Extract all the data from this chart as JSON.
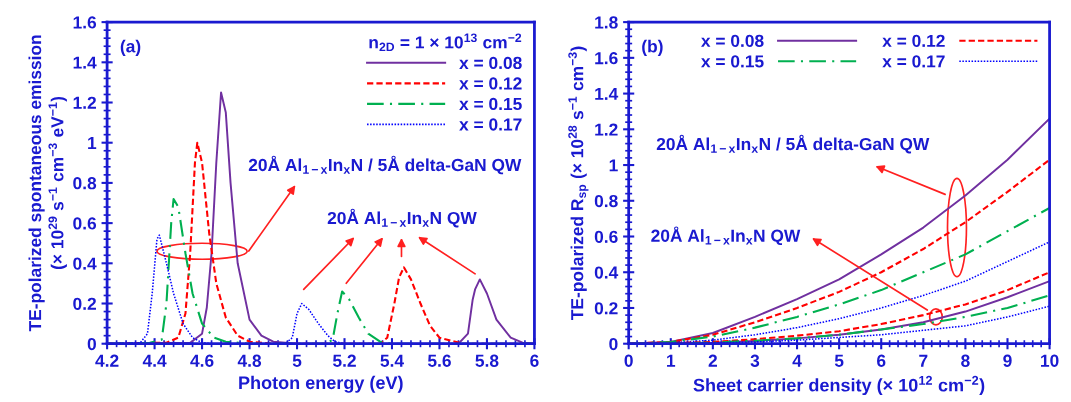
{
  "chart_data": [
    {
      "type": "line",
      "xlabel": "Photon energy (eV)",
      "ylabel": "TE-polarized spontaneous emission\n(× 10$^{29}$ s$^{−1}$ cm$^{−3}$ eV$^{−1}$)",
      "xlim": [
        4.2,
        6
      ],
      "ylim": [
        0,
        1.6
      ],
      "xticks": [
        4.2,
        4.4,
        4.6,
        4.8,
        5,
        5.2,
        5.4,
        5.6,
        5.8,
        6
      ],
      "yticks": [
        0,
        0.2,
        0.4,
        0.6,
        0.8,
        1,
        1.2,
        1.4,
        1.6
      ],
      "legend": "top right",
      "legend_title": "n$_{2D}$ = 1 × 10$^{13}$ cm$^{−2}$",
      "annotations": [
        "(a)",
        "20Å Al$_{1−x}$In$_{x}$N / 5Å delta-GaN QW",
        "20Å Al$_{1−x}$In$_{x}$N QW"
      ],
      "series": [
        {
          "name": "x = 0.08",
          "color": "#7030a0",
          "line_style": "solid",
          "x": [
            4.2,
            4.55,
            4.6,
            4.62,
            4.64,
            4.66,
            4.68,
            4.7,
            4.72,
            4.75,
            4.8,
            4.85,
            4.9,
            5.0,
            5.68,
            5.72,
            5.74,
            5.75,
            5.77,
            5.8,
            5.84,
            5.9,
            5.95,
            6.0
          ],
          "values": [
            0,
            0.005,
            0.05,
            0.18,
            0.45,
            0.9,
            1.25,
            1.15,
            0.8,
            0.4,
            0.12,
            0.04,
            0.01,
            0,
            0,
            0.05,
            0.22,
            0.27,
            0.32,
            0.25,
            0.12,
            0.03,
            0.005,
            0
          ]
        },
        {
          "name": "x = 0.12",
          "color": "#ff0000",
          "line_style": "dashed",
          "x": [
            4.2,
            4.45,
            4.5,
            4.53,
            4.55,
            4.57,
            4.58,
            4.6,
            4.63,
            4.66,
            4.7,
            4.75,
            4.8,
            4.9,
            5.35,
            5.38,
            5.41,
            5.43,
            5.45,
            5.48,
            5.52,
            5.56,
            5.6,
            5.7,
            6.0
          ],
          "values": [
            0,
            0.005,
            0.03,
            0.15,
            0.45,
            0.9,
            1.0,
            0.9,
            0.55,
            0.3,
            0.13,
            0.04,
            0.01,
            0,
            0,
            0.03,
            0.2,
            0.33,
            0.38,
            0.32,
            0.2,
            0.09,
            0.03,
            0,
            0
          ]
        },
        {
          "name": "x = 0.15",
          "color": "#00b050",
          "line_style": "dashdot",
          "x": [
            4.2,
            4.38,
            4.43,
            4.45,
            4.47,
            4.48,
            4.5,
            4.53,
            4.56,
            4.6,
            4.65,
            4.7,
            4.8,
            5.12,
            5.15,
            5.17,
            5.19,
            5.22,
            5.26,
            5.3,
            5.35,
            5.4,
            6.0
          ],
          "values": [
            0,
            0.005,
            0.02,
            0.2,
            0.6,
            0.72,
            0.68,
            0.45,
            0.25,
            0.1,
            0.03,
            0.01,
            0,
            0,
            0.02,
            0.15,
            0.26,
            0.22,
            0.13,
            0.05,
            0.01,
            0,
            0
          ]
        },
        {
          "name": "x = 0.17",
          "color": "#0000ff",
          "line_style": "dotted",
          "x": [
            4.2,
            4.34,
            4.37,
            4.39,
            4.41,
            4.42,
            4.45,
            4.48,
            4.52,
            4.56,
            4.6,
            4.65,
            4.95,
            4.98,
            5.0,
            5.02,
            5.05,
            5.09,
            5.13,
            5.16,
            5.2,
            6.0
          ],
          "values": [
            0,
            0.005,
            0.05,
            0.25,
            0.52,
            0.54,
            0.4,
            0.25,
            0.1,
            0.03,
            0.005,
            0,
            0,
            0.03,
            0.15,
            0.2,
            0.17,
            0.1,
            0.04,
            0.01,
            0,
            0
          ]
        }
      ]
    },
    {
      "type": "line",
      "xlabel": "Sheet carrier density (× 10$^{12}$ cm$^{−2}$)",
      "ylabel": "TE-polarized R$_{sp}$ (× 10$^{28}$ s$^{−1}$ cm$^{−3}$)",
      "xlim": [
        0,
        10
      ],
      "ylim": [
        0,
        1.8
      ],
      "xticks": [
        0,
        1,
        2,
        3,
        4,
        5,
        6,
        7,
        8,
        9,
        10
      ],
      "yticks": [
        0,
        0.2,
        0.4,
        0.6,
        0.8,
        1,
        1.2,
        1.4,
        1.6,
        1.8
      ],
      "legend": "top right",
      "annotations": [
        "(b)",
        "20Å Al$_{1−x}$In$_{x}$N / 5Å delta-GaN QW",
        "20Å Al$_{1−x}$In$_{x}$N QW"
      ],
      "series": [
        {
          "name": "x = 0.08",
          "color": "#7030a0",
          "line_style": "solid",
          "x": [
            0,
            1,
            2,
            3,
            4,
            5,
            6,
            7,
            8,
            9,
            10
          ],
          "values": [
            0,
            0.01,
            0.06,
            0.15,
            0.25,
            0.36,
            0.5,
            0.65,
            0.83,
            1.03,
            1.26
          ]
        },
        {
          "name": "x = 0.12",
          "color": "#ff0000",
          "line_style": "dashed",
          "x": [
            0,
            1,
            2,
            3,
            4,
            5,
            6,
            7,
            8,
            9,
            10
          ],
          "values": [
            0,
            0.01,
            0.05,
            0.12,
            0.2,
            0.29,
            0.4,
            0.53,
            0.68,
            0.85,
            1.03
          ]
        },
        {
          "name": "x = 0.15",
          "color": "#00b050",
          "line_style": "dashdot",
          "x": [
            0,
            1,
            2,
            3,
            4,
            5,
            6,
            7,
            8,
            9,
            10
          ],
          "values": [
            0,
            0.01,
            0.04,
            0.09,
            0.15,
            0.22,
            0.3,
            0.4,
            0.5,
            0.63,
            0.76
          ]
        },
        {
          "name": "x = 0.17",
          "color": "#0000ff",
          "line_style": "dotted",
          "x": [
            0,
            1,
            2,
            3,
            4,
            5,
            6,
            7,
            8,
            9,
            10
          ],
          "values": [
            0,
            0.005,
            0.02,
            0.05,
            0.09,
            0.14,
            0.2,
            0.27,
            0.35,
            0.46,
            0.57
          ]
        },
        {
          "color": "#7030a0",
          "line_style": "solid",
          "x": [
            0,
            1,
            2,
            3,
            4,
            5,
            6,
            7,
            8,
            9,
            10
          ],
          "values": [
            0,
            0.002,
            0.005,
            0.015,
            0.03,
            0.05,
            0.08,
            0.12,
            0.18,
            0.26,
            0.35
          ]
        },
        {
          "color": "#ff0000",
          "line_style": "dashed",
          "x": [
            0,
            1,
            2,
            3,
            4,
            5,
            6,
            7,
            8,
            9,
            10
          ],
          "values": [
            0,
            0.003,
            0.01,
            0.025,
            0.045,
            0.07,
            0.11,
            0.16,
            0.22,
            0.3,
            0.4
          ]
        },
        {
          "color": "#00b050",
          "line_style": "dashdot",
          "x": [
            0,
            1,
            2,
            3,
            4,
            5,
            6,
            7,
            8,
            9,
            10
          ],
          "values": [
            0,
            0.002,
            0.006,
            0.017,
            0.03,
            0.05,
            0.08,
            0.11,
            0.15,
            0.2,
            0.27
          ]
        },
        {
          "color": "#0000ff",
          "line_style": "dotted",
          "x": [
            0,
            1,
            2,
            3,
            4,
            5,
            6,
            7,
            8,
            9,
            10
          ],
          "values": [
            0,
            0.001,
            0.004,
            0.01,
            0.02,
            0.035,
            0.05,
            0.075,
            0.1,
            0.15,
            0.21
          ]
        }
      ]
    }
  ]
}
